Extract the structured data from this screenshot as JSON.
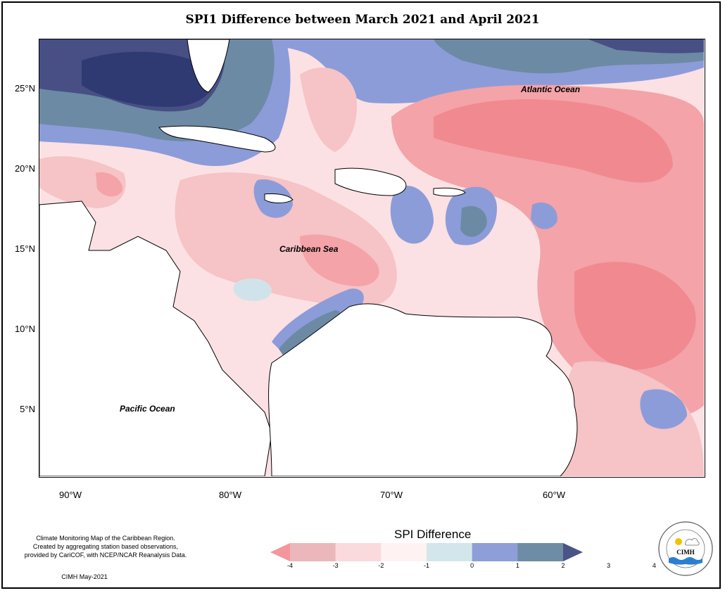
{
  "title": "SPI1 Difference between March 2021 and April 2021",
  "axes": {
    "y_ticks": [
      "25°N",
      "20°N",
      "15°N",
      "10°N",
      "5°N"
    ],
    "x_ticks": [
      "90°W",
      "80°W",
      "70°W",
      "60°W"
    ]
  },
  "labels": {
    "atlantic": "Atlantic Ocean",
    "caribbean": "Caribbean Sea",
    "pacific": "Pacific Ocean"
  },
  "legend": {
    "title": "SPI Difference",
    "values": [
      "-4",
      "-3",
      "-2",
      "-1",
      "0",
      "1",
      "2",
      "3",
      "4"
    ],
    "colors": [
      "#f4969b",
      "#ebb7ba",
      "#fadadd",
      "#fff2f2",
      "#d3e6ec",
      "#8e9ed8",
      "#6f8ca6",
      "#4a5487"
    ]
  },
  "notes": {
    "line1": "Climate Monitoring Map of the Caribbean Region.",
    "line2": "Created by aggregating station based observations,",
    "line3": "provided by CariCOF, with NCEP/NCAR Reanalysis Data.",
    "credit": "CIMH May-2021"
  },
  "logo": {
    "text": "CIMH",
    "ring_text": "Caribbean Institute for Meteorology and Hydrology"
  },
  "palette": {
    "deep_red": "#f08a90",
    "red": "#f4a3a8",
    "pink": "#f6c3c6",
    "light_pink": "#fbe1e3",
    "near_white": "#fff4f4",
    "light_blue": "#d0e3ea",
    "blue": "#8c9cd9",
    "slate": "#6c8aa4",
    "navy": "#474f85"
  }
}
